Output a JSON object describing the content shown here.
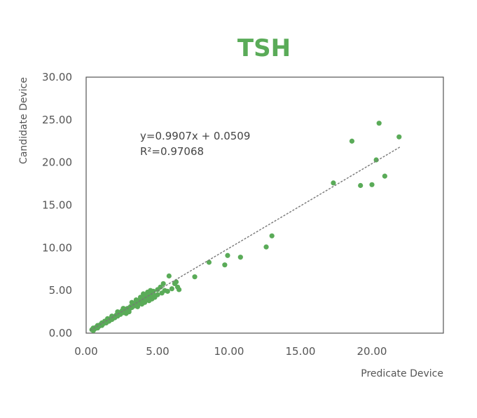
{
  "chart_data": {
    "type": "scatter",
    "title": "TSH",
    "xlabel": "Predicate Device",
    "ylabel": "Candidate Device",
    "xlim": [
      0,
      25
    ],
    "ylim": [
      0,
      30
    ],
    "x_ticks": [
      "0.00",
      "5.00",
      "10.00",
      "15.00",
      "20.00"
    ],
    "y_ticks": [
      "0.00",
      "5.00",
      "10.00",
      "15.00",
      "20.00",
      "25.00",
      "30.00"
    ],
    "grid": false,
    "legend": "none",
    "annotation": {
      "equation": "y=0.9907x + 0.0509",
      "r_squared": "R²=0.97068"
    },
    "trendline": {
      "slope": 0.9907,
      "intercept": 0.0509,
      "x_range": [
        0.3,
        22.0
      ]
    },
    "colors": {
      "points": "#5aab58",
      "trendline": "#777777",
      "title": "#5aab58",
      "frame": "#555555"
    },
    "points": [
      {
        "x": 0.4,
        "y": 0.4
      },
      {
        "x": 0.5,
        "y": 0.3
      },
      {
        "x": 0.5,
        "y": 0.6
      },
      {
        "x": 0.6,
        "y": 0.5
      },
      {
        "x": 0.7,
        "y": 0.7
      },
      {
        "x": 0.8,
        "y": 0.6
      },
      {
        "x": 0.8,
        "y": 0.9
      },
      {
        "x": 0.9,
        "y": 0.8
      },
      {
        "x": 1.0,
        "y": 1.0
      },
      {
        "x": 1.1,
        "y": 0.9
      },
      {
        "x": 1.1,
        "y": 1.2
      },
      {
        "x": 1.2,
        "y": 1.1
      },
      {
        "x": 1.3,
        "y": 1.4
      },
      {
        "x": 1.4,
        "y": 1.2
      },
      {
        "x": 1.5,
        "y": 1.5
      },
      {
        "x": 1.6,
        "y": 1.4
      },
      {
        "x": 1.7,
        "y": 1.7
      },
      {
        "x": 1.8,
        "y": 1.6
      },
      {
        "x": 1.9,
        "y": 1.9
      },
      {
        "x": 2.0,
        "y": 1.8
      },
      {
        "x": 2.1,
        "y": 2.1
      },
      {
        "x": 2.2,
        "y": 2.0
      },
      {
        "x": 2.3,
        "y": 2.3
      },
      {
        "x": 2.4,
        "y": 2.2
      },
      {
        "x": 2.5,
        "y": 2.6
      },
      {
        "x": 2.6,
        "y": 2.4
      },
      {
        "x": 2.7,
        "y": 2.8
      },
      {
        "x": 2.8,
        "y": 2.6
      },
      {
        "x": 2.9,
        "y": 2.9
      },
      {
        "x": 3.0,
        "y": 2.7
      },
      {
        "x": 3.1,
        "y": 3.1
      },
      {
        "x": 3.2,
        "y": 3.0
      },
      {
        "x": 3.3,
        "y": 3.4
      },
      {
        "x": 3.4,
        "y": 3.2
      },
      {
        "x": 3.5,
        "y": 3.6
      },
      {
        "x": 3.6,
        "y": 3.3
      },
      {
        "x": 3.7,
        "y": 3.8
      },
      {
        "x": 3.8,
        "y": 3.5
      },
      {
        "x": 3.9,
        "y": 4.0
      },
      {
        "x": 4.0,
        "y": 3.7
      },
      {
        "x": 4.1,
        "y": 4.3
      },
      {
        "x": 4.2,
        "y": 3.9
      },
      {
        "x": 4.3,
        "y": 4.5
      },
      {
        "x": 4.4,
        "y": 4.1
      },
      {
        "x": 4.5,
        "y": 4.7
      },
      {
        "x": 4.6,
        "y": 4.3
      },
      {
        "x": 4.7,
        "y": 4.9
      },
      {
        "x": 4.8,
        "y": 4.4
      },
      {
        "x": 3.2,
        "y": 3.6
      },
      {
        "x": 3.5,
        "y": 3.9
      },
      {
        "x": 3.8,
        "y": 4.2
      },
      {
        "x": 4.0,
        "y": 4.6
      },
      {
        "x": 4.3,
        "y": 4.8
      },
      {
        "x": 4.5,
        "y": 5.0
      },
      {
        "x": 3.6,
        "y": 3.1
      },
      {
        "x": 3.9,
        "y": 3.4
      },
      {
        "x": 4.1,
        "y": 3.6
      },
      {
        "x": 4.4,
        "y": 3.8
      },
      {
        "x": 4.6,
        "y": 4.0
      },
      {
        "x": 4.8,
        "y": 4.2
      },
      {
        "x": 5.0,
        "y": 4.5
      },
      {
        "x": 5.0,
        "y": 5.1
      },
      {
        "x": 5.2,
        "y": 5.4
      },
      {
        "x": 5.3,
        "y": 4.7
      },
      {
        "x": 5.4,
        "y": 5.8
      },
      {
        "x": 5.5,
        "y": 5.0
      },
      {
        "x": 5.7,
        "y": 4.9
      },
      {
        "x": 5.8,
        "y": 6.7
      },
      {
        "x": 6.0,
        "y": 5.2
      },
      {
        "x": 6.2,
        "y": 5.8
      },
      {
        "x": 6.3,
        "y": 6.0
      },
      {
        "x": 6.4,
        "y": 5.4
      },
      {
        "x": 6.5,
        "y": 5.1
      },
      {
        "x": 2.2,
        "y": 2.5
      },
      {
        "x": 2.6,
        "y": 2.9
      },
      {
        "x": 2.8,
        "y": 2.3
      },
      {
        "x": 3.0,
        "y": 2.5
      },
      {
        "x": 1.5,
        "y": 1.7
      },
      {
        "x": 1.8,
        "y": 2.0
      },
      {
        "x": 7.6,
        "y": 6.6
      },
      {
        "x": 8.6,
        "y": 8.3
      },
      {
        "x": 9.7,
        "y": 8.0
      },
      {
        "x": 9.9,
        "y": 9.1
      },
      {
        "x": 10.8,
        "y": 8.9
      },
      {
        "x": 12.6,
        "y": 10.1
      },
      {
        "x": 13.0,
        "y": 11.4
      },
      {
        "x": 17.3,
        "y": 17.6
      },
      {
        "x": 18.6,
        "y": 22.5
      },
      {
        "x": 19.2,
        "y": 17.3
      },
      {
        "x": 20.0,
        "y": 17.4
      },
      {
        "x": 20.3,
        "y": 20.3
      },
      {
        "x": 20.5,
        "y": 24.6
      },
      {
        "x": 20.9,
        "y": 18.4
      },
      {
        "x": 21.9,
        "y": 23.0
      }
    ]
  }
}
